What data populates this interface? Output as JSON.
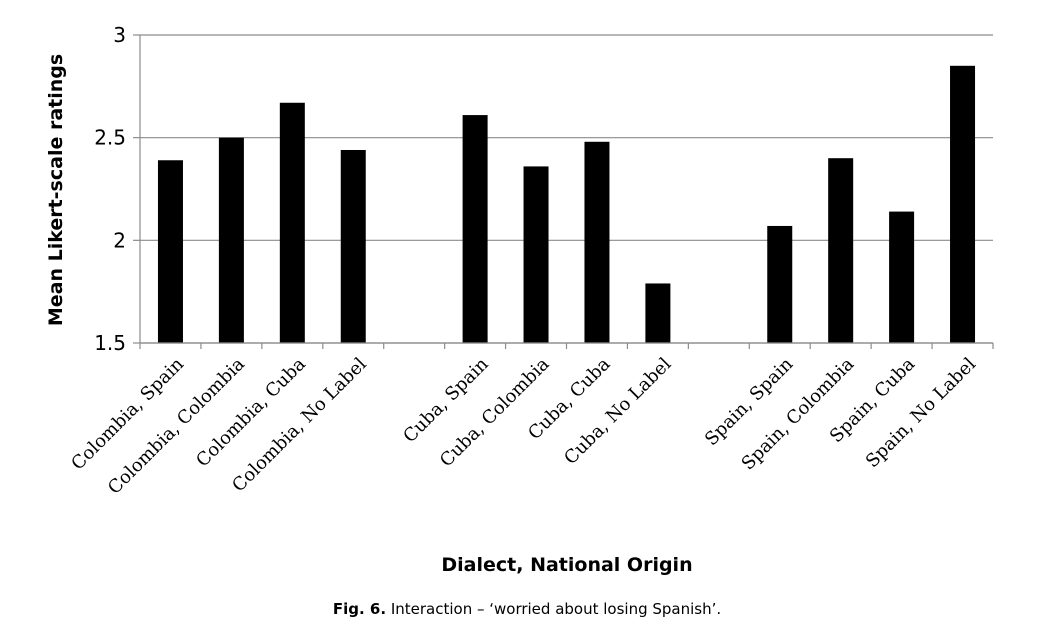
{
  "chart_data": {
    "type": "bar",
    "title": "",
    "xlabel": "Dialect, National Origin",
    "ylabel": "Mean Likert-scale ratings",
    "ylim": [
      1.5,
      3
    ],
    "yticks": [
      "1.5",
      "2",
      "2.5",
      "3"
    ],
    "grid": true,
    "legend": "none",
    "bar_color": "#000000",
    "categories": [
      "Colombia, Spain",
      "Colombia, Colombia",
      "Colombia, Cuba",
      "Colombia, No Label",
      "",
      "Cuba, Spain",
      "Cuba, Colombia",
      "Cuba, Cuba",
      "Cuba, No Label",
      "",
      "Spain, Spain",
      "Spain, Colombia",
      "Spain, Cuba",
      "Spain, No Label"
    ],
    "values": [
      2.39,
      2.5,
      2.67,
      2.44,
      null,
      2.61,
      2.36,
      2.48,
      1.79,
      null,
      2.07,
      2.4,
      2.14,
      2.85
    ]
  },
  "caption": {
    "label": "Fig. 6.",
    "text": " Interaction – ‘worried about losing Spanish’."
  }
}
